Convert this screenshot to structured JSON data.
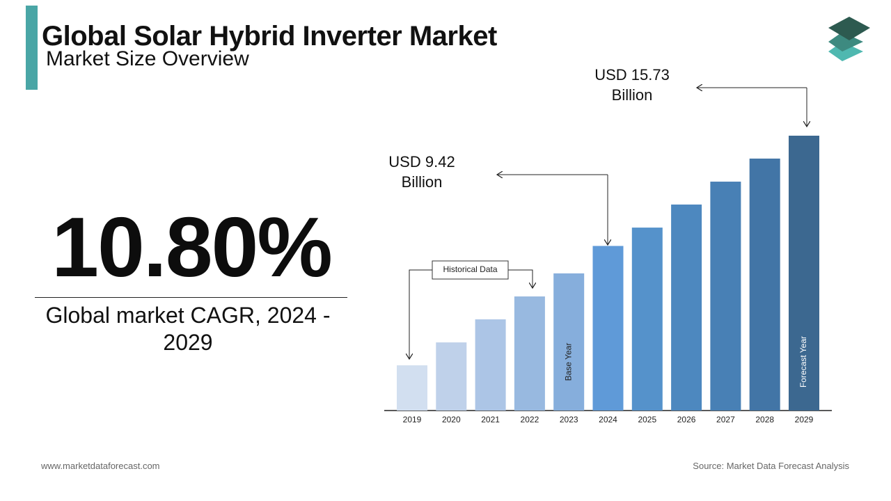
{
  "header": {
    "title": "Global Solar Hybrid Inverter Market",
    "subtitle": "Market Size Overview"
  },
  "stat": {
    "value": "10.80%",
    "caption": "Global market CAGR, 2024 - 2029"
  },
  "footer": {
    "website": "www.marketdataforecast.com",
    "source": "Source: Market Data Forecast Analysis"
  },
  "chart_data": {
    "type": "bar",
    "categories": [
      "2019",
      "2020",
      "2021",
      "2022",
      "2023",
      "2024",
      "2025",
      "2026",
      "2027",
      "2028",
      "2029"
    ],
    "values": [
      2.59,
      3.9,
      5.22,
      6.53,
      7.85,
      9.42,
      10.47,
      11.79,
      13.1,
      14.42,
      15.73
    ],
    "value_labels": [
      null,
      null,
      null,
      null,
      null,
      "USD 9.42 Billion",
      null,
      null,
      null,
      null,
      "USD 15.73 Billion"
    ],
    "bar_notes": [
      null,
      null,
      null,
      null,
      "Base Year",
      null,
      null,
      null,
      null,
      null,
      "Forecast Year"
    ],
    "colors": [
      "#d2dff0",
      "#bfd1ea",
      "#acc5e6",
      "#98b9e0",
      "#86aedc",
      "#5f9ad8",
      "#5592cb",
      "#4d88bf",
      "#4880b5",
      "#4275a6",
      "#3c6890"
    ],
    "annotation": "Historical Data"
  }
}
